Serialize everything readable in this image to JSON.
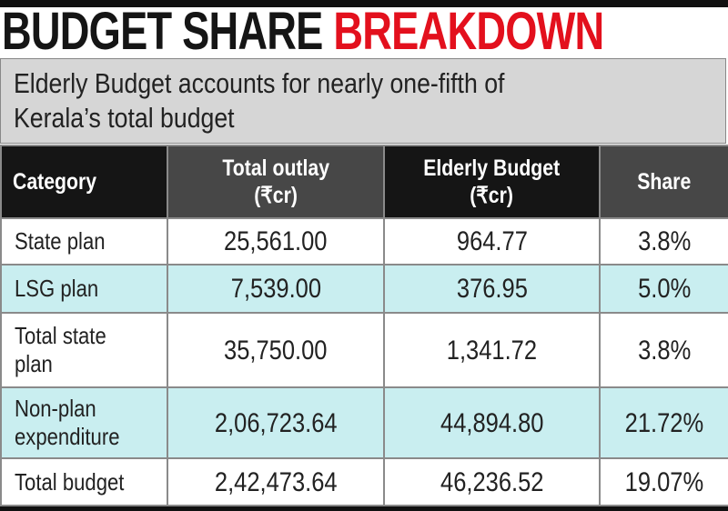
{
  "title": {
    "part1": "BUDGET SHARE ",
    "part2": "BREAKDOWN"
  },
  "subtitle": {
    "line1": "Elderly Budget accounts for nearly one-fifth of",
    "line2": "Kerala’s total budget"
  },
  "colors": {
    "title_accent": "#e3101d",
    "header_dark": "#151515",
    "header_gray": "#474747",
    "row_highlight": "#c9eef0"
  },
  "chart_data": {
    "type": "table",
    "title": "BUDGET SHARE BREAKDOWN",
    "subtitle": "Elderly Budget accounts for nearly one-fifth of Kerala’s total budget",
    "columns": [
      {
        "line1": "Category",
        "line2": ""
      },
      {
        "line1": "Total outlay",
        "line2": "(₹cr)"
      },
      {
        "line1": "Elderly Budget",
        "line2": "(₹cr)"
      },
      {
        "line1": "Share",
        "line2": ""
      }
    ],
    "rows": [
      {
        "category": "State plan",
        "total_outlay": "25,561.00",
        "elderly_budget": "964.77",
        "share": "3.8%"
      },
      {
        "category": "LSG plan",
        "total_outlay": "7,539.00",
        "elderly_budget": "376.95",
        "share": "5.0%"
      },
      {
        "category": "Total state plan",
        "total_outlay": "35,750.00",
        "elderly_budget": "1,341.72",
        "share": "3.8%"
      },
      {
        "category": "Non-plan expenditure",
        "total_outlay": "2,06,723.64",
        "elderly_budget": "44,894.80",
        "share": "21.72%"
      },
      {
        "category": "Total budget",
        "total_outlay": "2,42,473.64",
        "elderly_budget": "46,236.52",
        "share": "19.07%"
      }
    ]
  }
}
